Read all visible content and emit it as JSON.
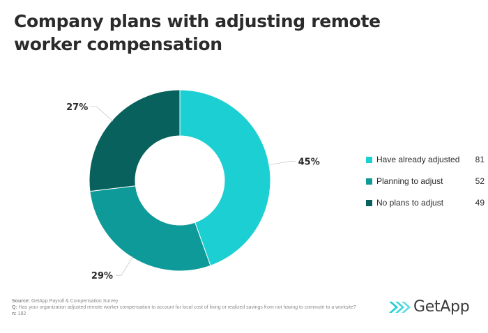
{
  "title": "Company plans with adjusting remote worker compensation",
  "chart_data": {
    "type": "pie",
    "variant": "donut",
    "categories": [
      "Have already adjusted",
      "Planning to adjust",
      "No plans to adjust"
    ],
    "values": [
      81,
      52,
      49
    ],
    "percent_labels": [
      "45%",
      "29%",
      "27%"
    ],
    "colors": [
      "#1ccfd2",
      "#0d9a98",
      "#08615d"
    ],
    "legend_position": "right",
    "start_angle_deg": 0,
    "direction": "clockwise"
  },
  "footer": {
    "source_label": "Source:",
    "source_text": "GetApp Payroll & Compensation Survey",
    "question_label": "Q:",
    "question_text": "Has your organization adjusted remote worker compensation to account for local cost of living or realized savings from not having to commute to a worksite?",
    "n_label": "n:",
    "n_text": "182"
  },
  "logo": {
    "text": "GetApp",
    "icon": "getapp-chevrons-icon",
    "color": "#1ccfd2"
  }
}
